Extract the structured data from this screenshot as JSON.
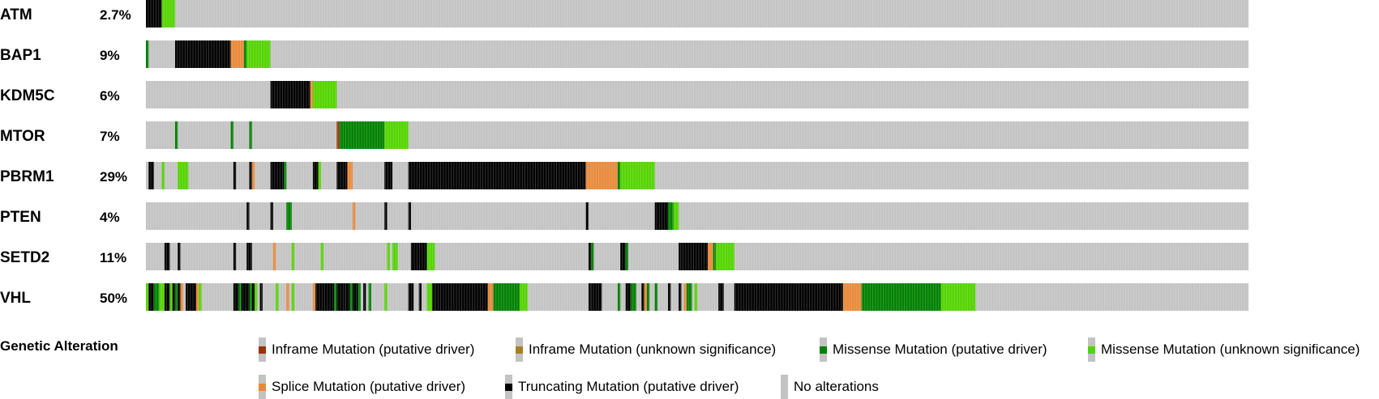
{
  "chart_data": {
    "type": "oncoprint",
    "n_samples": 416,
    "colors": {
      "background": "#c3c3c3",
      "inframe_driver": "#993404",
      "inframe_vus": "#a68028",
      "missense_driver": "#008000",
      "missense_vus": "#53d400",
      "splice_driver": "#e8893a",
      "truncating_driver": "#000000"
    },
    "genes": [
      {
        "name": "ATM",
        "percent": "2.7%",
        "alterations": [
          {
            "from": 0,
            "to": 6,
            "type": "truncating_driver"
          },
          {
            "from": 6,
            "to": 11,
            "type": "missense_vus"
          }
        ]
      },
      {
        "name": "BAP1",
        "percent": "9%",
        "alterations": [
          {
            "from": 0,
            "to": 1,
            "type": "missense_driver"
          },
          {
            "from": 11,
            "to": 32,
            "type": "truncating_driver"
          },
          {
            "from": 32,
            "to": 37,
            "type": "splice_driver"
          },
          {
            "from": 37,
            "to": 38,
            "type": "missense_driver"
          },
          {
            "from": 38,
            "to": 47,
            "type": "missense_vus"
          }
        ]
      },
      {
        "name": "KDM5C",
        "percent": "6%",
        "alterations": [
          {
            "from": 47,
            "to": 62,
            "type": "truncating_driver"
          },
          {
            "from": 62,
            "to": 63,
            "type": "splice_driver"
          },
          {
            "from": 63,
            "to": 72,
            "type": "missense_vus"
          }
        ]
      },
      {
        "name": "MTOR",
        "percent": "7%",
        "alterations": [
          {
            "from": 11,
            "to": 12,
            "type": "missense_driver"
          },
          {
            "from": 32,
            "to": 33,
            "type": "missense_driver"
          },
          {
            "from": 39,
            "to": 40,
            "type": "missense_driver"
          },
          {
            "from": 72,
            "to": 73,
            "type": "inframe_driver"
          },
          {
            "from": 73,
            "to": 90,
            "type": "missense_driver"
          },
          {
            "from": 90,
            "to": 99,
            "type": "missense_vus"
          }
        ]
      },
      {
        "name": "PBRM1",
        "percent": "29%",
        "alterations": [
          {
            "from": 1,
            "to": 3,
            "type": "truncating_driver"
          },
          {
            "from": 6,
            "to": 7,
            "type": "missense_vus"
          },
          {
            "from": 12,
            "to": 16,
            "type": "missense_vus"
          },
          {
            "from": 33,
            "to": 34,
            "type": "truncating_driver"
          },
          {
            "from": 39,
            "to": 40,
            "type": "truncating_driver"
          },
          {
            "from": 40,
            "to": 41,
            "type": "splice_driver"
          },
          {
            "from": 47,
            "to": 52,
            "type": "truncating_driver"
          },
          {
            "from": 52,
            "to": 53,
            "type": "missense_driver"
          },
          {
            "from": 63,
            "to": 65,
            "type": "truncating_driver"
          },
          {
            "from": 65,
            "to": 66,
            "type": "missense_vus"
          },
          {
            "from": 72,
            "to": 76,
            "type": "truncating_driver"
          },
          {
            "from": 76,
            "to": 78,
            "type": "splice_driver"
          },
          {
            "from": 90,
            "to": 93,
            "type": "truncating_driver"
          },
          {
            "from": 99,
            "to": 166,
            "type": "truncating_driver"
          },
          {
            "from": 166,
            "to": 178,
            "type": "splice_driver"
          },
          {
            "from": 178,
            "to": 179,
            "type": "missense_driver"
          },
          {
            "from": 179,
            "to": 192,
            "type": "missense_vus"
          }
        ]
      },
      {
        "name": "PTEN",
        "percent": "4%",
        "alterations": [
          {
            "from": 38,
            "to": 39,
            "type": "truncating_driver"
          },
          {
            "from": 47,
            "to": 48,
            "type": "truncating_driver"
          },
          {
            "from": 53,
            "to": 55,
            "type": "missense_driver"
          },
          {
            "from": 78,
            "to": 79,
            "type": "splice_driver"
          },
          {
            "from": 90,
            "to": 91,
            "type": "truncating_driver"
          },
          {
            "from": 99,
            "to": 100,
            "type": "truncating_driver"
          },
          {
            "from": 166,
            "to": 167,
            "type": "truncating_driver"
          },
          {
            "from": 192,
            "to": 197,
            "type": "truncating_driver"
          },
          {
            "from": 197,
            "to": 199,
            "type": "missense_driver"
          },
          {
            "from": 199,
            "to": 201,
            "type": "missense_vus"
          }
        ]
      },
      {
        "name": "SETD2",
        "percent": "11%",
        "alterations": [
          {
            "from": 7,
            "to": 9,
            "type": "truncating_driver"
          },
          {
            "from": 12,
            "to": 13,
            "type": "truncating_driver"
          },
          {
            "from": 33,
            "to": 34,
            "type": "truncating_driver"
          },
          {
            "from": 38,
            "to": 40,
            "type": "truncating_driver"
          },
          {
            "from": 48,
            "to": 49,
            "type": "splice_driver"
          },
          {
            "from": 55,
            "to": 56,
            "type": "missense_vus"
          },
          {
            "from": 66,
            "to": 67,
            "type": "missense_vus"
          },
          {
            "from": 91,
            "to": 92,
            "type": "missense_vus"
          },
          {
            "from": 93,
            "to": 95,
            "type": "missense_vus"
          },
          {
            "from": 100,
            "to": 106,
            "type": "truncating_driver"
          },
          {
            "from": 106,
            "to": 109,
            "type": "missense_vus"
          },
          {
            "from": 167,
            "to": 168,
            "type": "truncating_driver"
          },
          {
            "from": 168,
            "to": 169,
            "type": "missense_driver"
          },
          {
            "from": 179,
            "to": 181,
            "type": "truncating_driver"
          },
          {
            "from": 181,
            "to": 182,
            "type": "missense_driver"
          },
          {
            "from": 201,
            "to": 202,
            "type": "truncating_driver"
          },
          {
            "from": 202,
            "to": 212,
            "type": "truncating_driver"
          },
          {
            "from": 212,
            "to": 214,
            "type": "splice_driver"
          },
          {
            "from": 214,
            "to": 215,
            "type": "missense_driver"
          },
          {
            "from": 215,
            "to": 222,
            "type": "missense_vus"
          }
        ]
      },
      {
        "name": "VHL",
        "percent": "50%",
        "alterations": [
          {
            "from": 0,
            "to": 1,
            "type": "missense_vus"
          },
          {
            "from": 1,
            "to": 3,
            "type": "truncating_driver"
          },
          {
            "from": 3,
            "to": 5,
            "type": "missense_driver"
          },
          {
            "from": 5,
            "to": 7,
            "type": "missense_vus"
          },
          {
            "from": 7,
            "to": 9,
            "type": "truncating_driver"
          },
          {
            "from": 9,
            "to": 10,
            "type": "missense_vus"
          },
          {
            "from": 10,
            "to": 11,
            "type": "truncating_driver"
          },
          {
            "from": 11,
            "to": 12,
            "type": "missense_driver"
          },
          {
            "from": 12,
            "to": 13,
            "type": "truncating_driver"
          },
          {
            "from": 13,
            "to": 14,
            "type": "splice_driver"
          },
          {
            "from": 15,
            "to": 19,
            "type": "truncating_driver"
          },
          {
            "from": 19,
            "to": 20,
            "type": "splice_driver"
          },
          {
            "from": 20,
            "to": 21,
            "type": "missense_vus"
          },
          {
            "from": 33,
            "to": 35,
            "type": "truncating_driver"
          },
          {
            "from": 35,
            "to": 36,
            "type": "missense_driver"
          },
          {
            "from": 36,
            "to": 39,
            "type": "truncating_driver"
          },
          {
            "from": 39,
            "to": 40,
            "type": "missense_driver"
          },
          {
            "from": 40,
            "to": 41,
            "type": "truncating_driver"
          },
          {
            "from": 41,
            "to": 42,
            "type": "missense_vus"
          },
          {
            "from": 43,
            "to": 44,
            "type": "truncating_driver"
          },
          {
            "from": 49,
            "to": 50,
            "type": "missense_vus"
          },
          {
            "from": 53,
            "to": 54,
            "type": "splice_driver"
          },
          {
            "from": 55,
            "to": 56,
            "type": "missense_vus"
          },
          {
            "from": 63,
            "to": 64,
            "type": "splice_driver"
          },
          {
            "from": 64,
            "to": 65,
            "type": "truncating_driver"
          },
          {
            "from": 65,
            "to": 71,
            "type": "truncating_driver"
          },
          {
            "from": 71,
            "to": 72,
            "type": "missense_driver"
          },
          {
            "from": 72,
            "to": 75,
            "type": "truncating_driver"
          },
          {
            "from": 75,
            "to": 77,
            "type": "truncating_driver"
          },
          {
            "from": 77,
            "to": 78,
            "type": "missense_driver"
          },
          {
            "from": 78,
            "to": 80,
            "type": "truncating_driver"
          },
          {
            "from": 80,
            "to": 81,
            "type": "missense_driver"
          },
          {
            "from": 82,
            "to": 83,
            "type": "truncating_driver"
          },
          {
            "from": 84,
            "to": 85,
            "type": "missense_driver"
          },
          {
            "from": 90,
            "to": 91,
            "type": "missense_vus"
          },
          {
            "from": 99,
            "to": 101,
            "type": "truncating_driver"
          },
          {
            "from": 103,
            "to": 104,
            "type": "truncating_driver"
          },
          {
            "from": 106,
            "to": 108,
            "type": "missense_vus"
          },
          {
            "from": 108,
            "to": 109,
            "type": "truncating_driver"
          },
          {
            "from": 109,
            "to": 129,
            "type": "truncating_driver"
          },
          {
            "from": 129,
            "to": 131,
            "type": "splice_driver"
          },
          {
            "from": 131,
            "to": 141,
            "type": "missense_driver"
          },
          {
            "from": 141,
            "to": 144,
            "type": "missense_vus"
          },
          {
            "from": 167,
            "to": 168,
            "type": "truncating_driver"
          },
          {
            "from": 168,
            "to": 172,
            "type": "truncating_driver"
          },
          {
            "from": 178,
            "to": 179,
            "type": "missense_driver"
          },
          {
            "from": 181,
            "to": 183,
            "type": "truncating_driver"
          },
          {
            "from": 183,
            "to": 185,
            "type": "missense_driver"
          },
          {
            "from": 187,
            "to": 188,
            "type": "truncating_driver"
          },
          {
            "from": 188,
            "to": 189,
            "type": "splice_driver"
          },
          {
            "from": 189,
            "to": 190,
            "type": "missense_driver"
          },
          {
            "from": 192,
            "to": 193,
            "type": "missense_driver"
          },
          {
            "from": 197,
            "to": 198,
            "type": "truncating_driver"
          },
          {
            "from": 201,
            "to": 202,
            "type": "truncating_driver"
          },
          {
            "from": 203,
            "to": 204,
            "type": "splice_driver"
          },
          {
            "from": 204,
            "to": 206,
            "type": "missense_driver"
          },
          {
            "from": 207,
            "to": 208,
            "type": "missense_vus"
          },
          {
            "from": 216,
            "to": 218,
            "type": "truncating_driver"
          },
          {
            "from": 222,
            "to": 263,
            "type": "truncating_driver"
          },
          {
            "from": 263,
            "to": 270,
            "type": "splice_driver"
          },
          {
            "from": 270,
            "to": 300,
            "type": "missense_driver"
          },
          {
            "from": 300,
            "to": 313,
            "type": "missense_vus"
          }
        ]
      }
    ]
  },
  "legend": {
    "title": "Genetic Alteration",
    "items": [
      {
        "label": "Inframe Mutation (putative driver)",
        "type": "inframe_driver"
      },
      {
        "label": "Inframe Mutation (unknown significance)",
        "type": "inframe_vus"
      },
      {
        "label": "Missense Mutation (putative driver)",
        "type": "missense_driver"
      },
      {
        "label": "Missense Mutation (unknown significance)",
        "type": "missense_vus"
      },
      {
        "label": "Splice Mutation (putative driver)",
        "type": "splice_driver"
      },
      {
        "label": "Truncating Mutation (putative driver)",
        "type": "truncating_driver"
      },
      {
        "label": "No alterations",
        "type": "none"
      }
    ]
  }
}
